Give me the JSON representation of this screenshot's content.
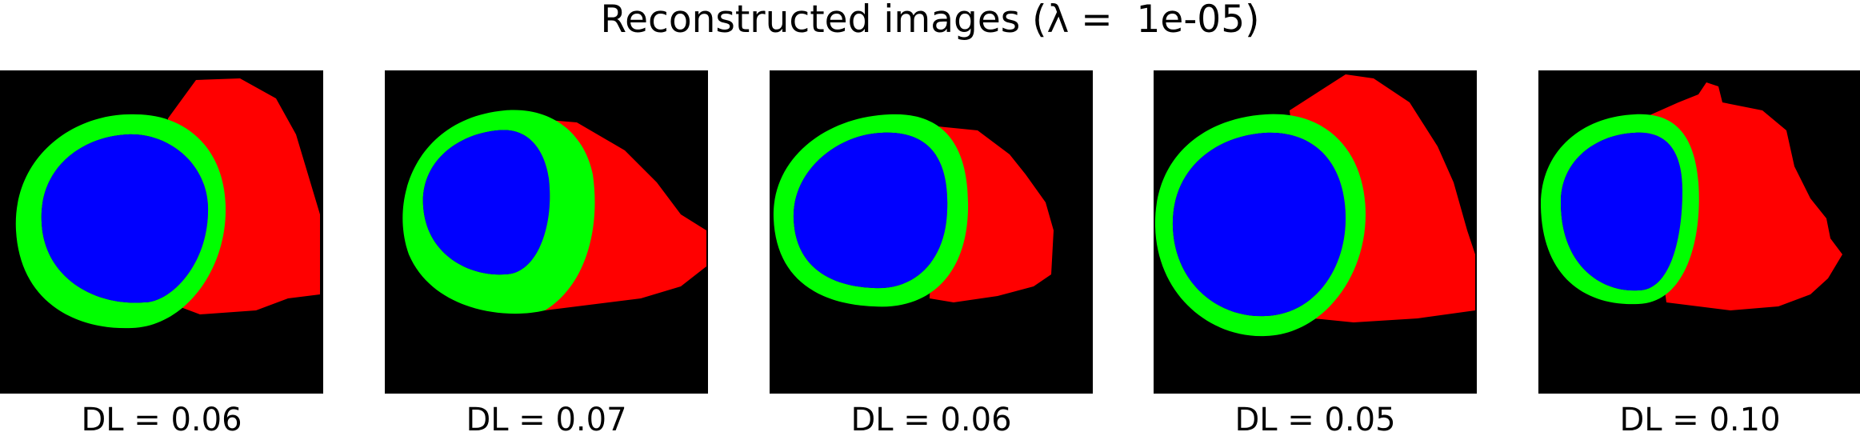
{
  "figure": {
    "title": "Reconstructed images (λ =  1e-05)",
    "colors": {
      "background": "#000000",
      "outer_region": "#ff0000",
      "ring": "#00ff00",
      "inner_region": "#0000ff"
    },
    "panels": [
      {
        "caption": "DL = 0.06"
      },
      {
        "caption": "DL = 0.07"
      },
      {
        "caption": "DL = 0.06"
      },
      {
        "caption": "DL = 0.05"
      },
      {
        "caption": "DL = 0.10"
      }
    ]
  }
}
